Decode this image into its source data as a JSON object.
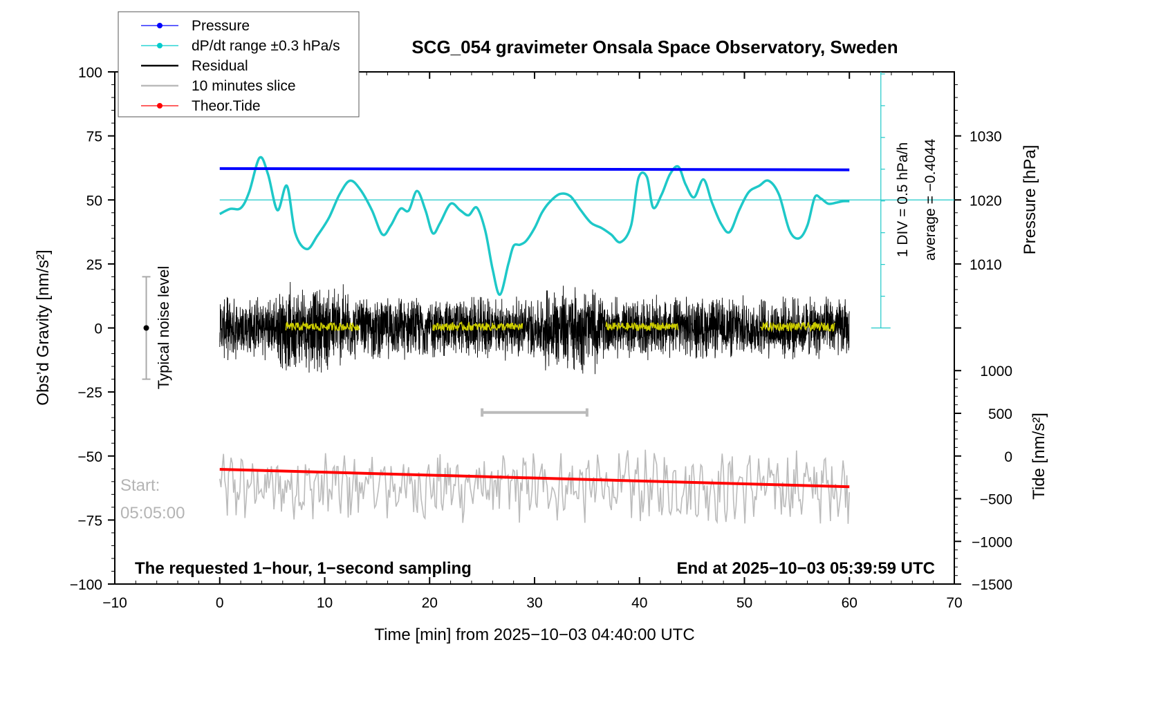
{
  "chart_data": {
    "type": "line",
    "title": "SCG_054 gravimeter Onsala Space Observatory, Sweden",
    "xlabel": "Time [min] from 2025−10−03 04:40:00 UTC",
    "ylabel_left": "Obs’d Gravity [nm/s²]",
    "ylabel_right_pressure": "Pressure [hPa]",
    "ylabel_right_tide": "Tide [nm/s²]",
    "xlim": [
      -10,
      70
    ],
    "ylim": [
      -100,
      100
    ],
    "x_ticks": [
      -10,
      0,
      10,
      20,
      30,
      40,
      50,
      60,
      70
    ],
    "x_tick_labels": [
      "−10",
      "0",
      "10",
      "20",
      "30",
      "40",
      "50",
      "60",
      "70"
    ],
    "y_ticks": [
      100,
      75,
      50,
      25,
      0,
      -25,
      -50,
      -75,
      -100
    ],
    "y_tick_labels": [
      "100",
      "75",
      "50",
      "25",
      "0",
      "−25",
      "−50",
      "−75",
      "−100"
    ],
    "pressure_axis": {
      "ticks": [
        1030,
        1020,
        1010
      ],
      "tick_labels": [
        "1030",
        "1020",
        "1010"
      ],
      "gravity_at_1020": 50,
      "gravity_per_10hPa": 25
    },
    "tide_axis": {
      "ticks": [
        1000,
        500,
        0,
        -500,
        -1000,
        -1500
      ],
      "tick_labels": [
        "1000",
        "500",
        "0",
        "−500",
        "−1000",
        "−1500"
      ],
      "gravity_at_0": -50,
      "gravity_per_500": 16.67
    },
    "legend": {
      "placement": "top-left",
      "entries": [
        {
          "label": "Pressure",
          "color": "#0000ff",
          "marker": true
        },
        {
          "label": "dP/dt range ±0.3 hPa/s",
          "color": "#00cccc",
          "marker": true
        },
        {
          "label": "Residual",
          "color": "#000000",
          "marker": false
        },
        {
          "label": "10 minutes slice",
          "color": "#bbbbbb",
          "marker": false
        },
        {
          "label": "Theor.Tide",
          "color": "#ff0000",
          "marker": true
        }
      ]
    },
    "series": [
      {
        "name": "Pressure",
        "color": "#0000ff",
        "unit": "hPa",
        "x": [
          0,
          60
        ],
        "values": [
          1024.9,
          1024.7
        ]
      },
      {
        "name": "dP/dt",
        "color": "#1ec8c8",
        "unit": "gravity-axis units (baseline 50 = 0 hPa/h)",
        "x": [
          0,
          1,
          2,
          2.8,
          3.8,
          4.6,
          5.5,
          6.4,
          7.2,
          8.3,
          9.3,
          10.4,
          11.4,
          12.4,
          13.4,
          14.5,
          15.5,
          16.3,
          17.2,
          18.0,
          18.8,
          19.6,
          20.3,
          21.0,
          22.0,
          22.9,
          23.7,
          24.5,
          25.3,
          26.0,
          26.7,
          27.5,
          28.0,
          28.6,
          29.2,
          30.0,
          30.7,
          31.4,
          32.4,
          33.4,
          34.4,
          35.4,
          36.4,
          37.3,
          38.2,
          39.2,
          39.9,
          40.7,
          41.3,
          42.1,
          42.9,
          43.7,
          44.4,
          45.2,
          46.1,
          46.9,
          47.8,
          48.6,
          49.5,
          50.4,
          51.4,
          52.3,
          53.3,
          54.3,
          55.2,
          56.0,
          56.7,
          57.3,
          58.0,
          58.8,
          59.4,
          60
        ],
        "values": [
          44.5,
          46.5,
          46.8,
          53,
          66.5,
          60,
          46,
          55.5,
          37,
          30.8,
          36,
          43,
          52,
          57.5,
          54,
          46,
          36.5,
          40,
          46.5,
          45.8,
          53.5,
          46,
          37,
          41,
          48.5,
          46,
          44,
          47,
          38,
          23,
          13,
          25,
          32,
          32.5,
          34,
          39,
          45,
          49,
          52.3,
          51.5,
          46,
          41,
          39,
          36.5,
          33.5,
          40,
          58.5,
          59,
          47,
          52,
          60,
          63,
          56,
          51,
          58,
          49,
          40.5,
          37.5,
          46,
          53,
          55.5,
          57.5,
          52,
          38,
          35,
          40,
          51,
          50.5,
          48.5,
          49,
          49.5,
          49.5
        ]
      },
      {
        "name": "Residual",
        "color": "#000000",
        "unit": "nm/s²",
        "note": "noisy 1-second residual centred on 0, amplitude about ±15, peaks to about ±27",
        "x_range": [
          0,
          60
        ],
        "amplitude": 12,
        "peaks": {
          "max": 28,
          "min": -29
        }
      },
      {
        "name": "10 minutes slice",
        "color": "#bbbbbb",
        "unit": "nm/s²",
        "note": "expanded 10-minute slice centred near -62, amplitude about ±15",
        "x_range": [
          0,
          60
        ],
        "center": -62,
        "amplitude": 10
      },
      {
        "name": "Smoothed residual segments",
        "color": "#cccc00",
        "unit": "nm/s²",
        "segments": [
          [
            6.3,
            13.4
          ],
          [
            20.3,
            28.9
          ],
          [
            36.8,
            43.7
          ],
          [
            51.5,
            58.6
          ]
        ],
        "center": 0.5
      },
      {
        "name": "Theor.Tide",
        "color": "#ff0000",
        "unit": "gravity-axis units",
        "x": [
          0,
          60
        ],
        "values": [
          -55.2,
          -62.0
        ]
      }
    ],
    "annotations": {
      "noise_bar": {
        "x": -7,
        "center": 0,
        "half_range": 20,
        "label": "Typical noise level"
      },
      "slice_marker": {
        "x_start": 25,
        "x_end": 35,
        "y": -33
      },
      "div_scale": {
        "x": 63,
        "baseline": 50,
        "bottom": 0,
        "top": 100,
        "div_step": 12.4,
        "label1": "1 DIV = 0.5 hPa/h",
        "label2": "average = −0.4044"
      },
      "dpdt_baseline": 50,
      "start_label": "Start:",
      "start_time": "05:05:00",
      "bottom_left_text": "The requested 1−hour, 1−second sampling",
      "bottom_right_text": "End at 2025−10−03 05:39:59 UTC"
    },
    "grid": false
  }
}
